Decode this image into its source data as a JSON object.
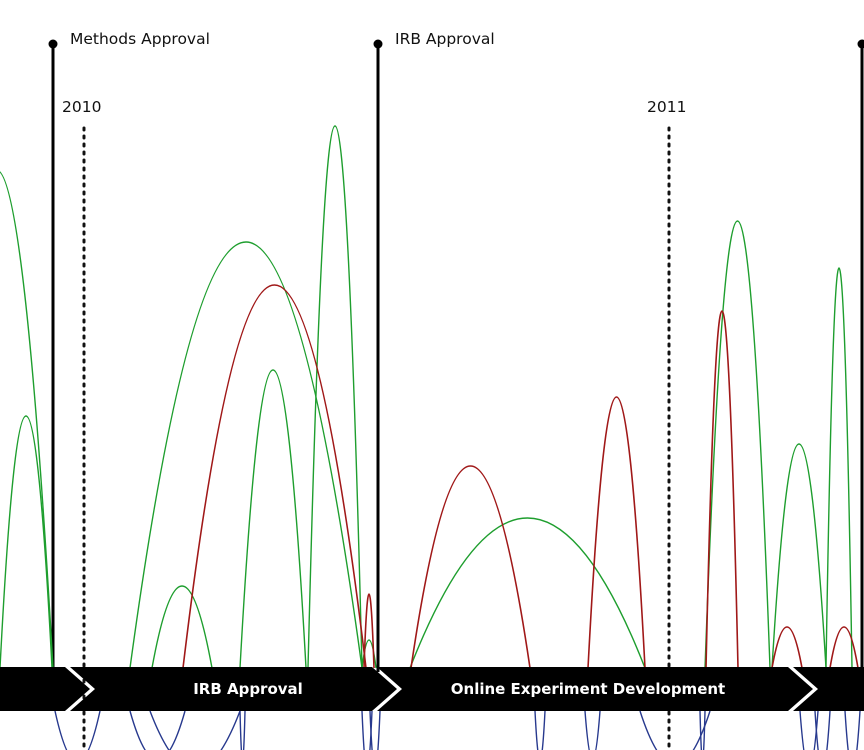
{
  "milestones": [
    {
      "label": "Methods Approval"
    },
    {
      "label": "IRB Approval"
    },
    {
      "label": ""
    }
  ],
  "years": [
    "2010",
    "2011"
  ],
  "phases": [
    {
      "label": ""
    },
    {
      "label": "IRB Approval"
    },
    {
      "label": "Online Experiment Development"
    },
    {
      "label": ""
    }
  ],
  "colors": {
    "green": "#1e9e2e",
    "red": "#a01818",
    "blue": "#27398e",
    "bar": "#000000"
  }
}
